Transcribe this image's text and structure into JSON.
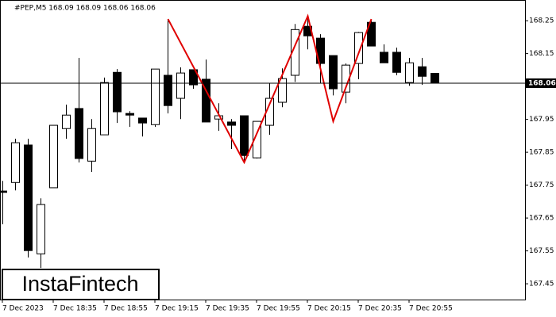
{
  "chart_data": {
    "type": "candlestick",
    "title": "#PEP,M5  168.09 168.09 168.06 168.06",
    "logo": "InstaFintech",
    "categories": [
      "7 Dec 2023",
      null,
      null,
      null,
      "7 Dec 18:35",
      null,
      null,
      null,
      "7 Dec 18:55",
      null,
      null,
      null,
      "7 Dec 19:15",
      null,
      null,
      null,
      "7 Dec 19:35",
      null,
      null,
      null,
      "7 Dec 19:55",
      null,
      null,
      null,
      "7 Dec 20:15",
      null,
      null,
      null,
      "7 Dec 20:35",
      null,
      null,
      null,
      "7 Dec 20:55",
      null,
      null
    ],
    "open": [
      167.732,
      167.758,
      167.872,
      167.541,
      167.742,
      167.922,
      167.983,
      167.823,
      167.903,
      168.093,
      167.968,
      167.954,
      167.934,
      168.084,
      168.014,
      168.101,
      168.072,
      167.951,
      167.942,
      167.961,
      167.833,
      167.932,
      168.002,
      168.084,
      168.233,
      168.197,
      168.144,
      168.033,
      168.12,
      168.245,
      168.154,
      168.154,
      168.062,
      168.11,
      168.09
    ],
    "high": [
      167.763,
      167.891,
      167.891,
      167.71,
      167.932,
      167.995,
      168.137,
      167.951,
      168.077,
      168.103,
      167.975,
      167.954,
      168.103,
      168.255,
      168.108,
      168.101,
      168.132,
      167.999,
      167.951,
      167.961,
      167.944,
      168.06,
      168.105,
      168.24,
      168.264,
      168.209,
      168.144,
      168.12,
      168.216,
      168.252,
      168.178,
      168.168,
      168.137,
      168.137,
      168.09
    ],
    "low": [
      167.631,
      167.734,
      167.53,
      167.498,
      167.742,
      167.891,
      167.819,
      167.79,
      167.903,
      167.939,
      167.927,
      167.898,
      167.927,
      167.968,
      167.951,
      168.043,
      167.942,
      167.915,
      167.86,
      167.819,
      167.831,
      167.903,
      167.987,
      168.064,
      168.163,
      168.06,
      168.023,
      167.999,
      168.072,
      168.173,
      168.122,
      168.084,
      168.052,
      168.055,
      168.06
    ],
    "close": [
      167.728,
      167.879,
      167.551,
      167.691,
      167.932,
      167.963,
      167.831,
      167.922,
      168.062,
      167.973,
      167.963,
      167.939,
      168.103,
      167.992,
      168.091,
      168.055,
      167.942,
      167.961,
      167.932,
      167.84,
      167.944,
      168.014,
      168.074,
      168.223,
      168.204,
      168.12,
      168.043,
      168.115,
      168.214,
      168.173,
      168.122,
      168.093,
      168.122,
      168.081,
      168.06
    ],
    "up_color": "#ffffff",
    "down_color": "#000000",
    "pattern": {
      "color": "#e00000",
      "x": [
        13,
        19,
        24,
        26,
        29
      ],
      "values": [
        168.255,
        167.819,
        168.264,
        167.944,
        168.255
      ]
    },
    "current_price": 168.06,
    "ylim": [
      167.402,
      168.313
    ],
    "yticks": [
      167.45,
      167.55,
      167.65,
      167.75,
      167.85,
      167.95,
      168.15,
      168.25
    ]
  }
}
